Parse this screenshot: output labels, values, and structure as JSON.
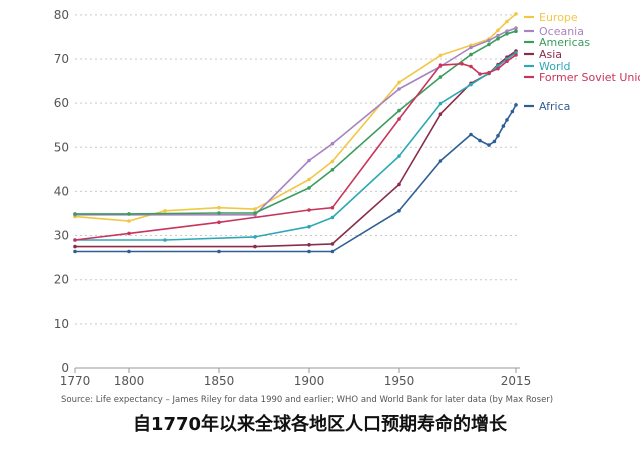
{
  "caption": "自1770年以来全球各地区人口预期寿命的增长",
  "chart_data": {
    "type": "line",
    "title": "",
    "xlabel": "",
    "ylabel": "",
    "xlim": [
      1770,
      2015
    ],
    "ylim": [
      0,
      82
    ],
    "x_ticks": [
      1770,
      1800,
      1850,
      1900,
      1950,
      2015
    ],
    "y_ticks": [
      0,
      10,
      20,
      30,
      40,
      50,
      60,
      70,
      80
    ],
    "grid": "horizontal dotted",
    "legend_placement": "right",
    "source": "Source: Life expectancy – James Riley for data 1990 and earlier; WHO and World Bank for later data (by Max Roser)",
    "series": [
      {
        "name": "Europe",
        "color": "#f2c744",
        "points": [
          [
            1770,
            34.3
          ],
          [
            1800,
            33.3
          ],
          [
            1820,
            35.6
          ],
          [
            1850,
            36.3
          ],
          [
            1870,
            36.0
          ],
          [
            1900,
            42.7
          ],
          [
            1913,
            46.8
          ],
          [
            1950,
            64.7
          ],
          [
            1973,
            70.8
          ],
          [
            1990,
            73.1
          ],
          [
            2000,
            74.5
          ],
          [
            2005,
            76.5
          ],
          [
            2010,
            78.5
          ],
          [
            2015,
            80.2
          ]
        ]
      },
      {
        "name": "Oceania",
        "color": "#a884bf",
        "points": [
          [
            1770,
            34.7
          ],
          [
            1870,
            34.7
          ],
          [
            1900,
            47.0
          ],
          [
            1913,
            50.8
          ],
          [
            1950,
            63.2
          ],
          [
            1973,
            68.3
          ],
          [
            1990,
            72.6
          ],
          [
            2000,
            74.2
          ],
          [
            2005,
            75.3
          ],
          [
            2010,
            76.3
          ],
          [
            2015,
            77.0
          ]
        ]
      },
      {
        "name": "Americas",
        "color": "#3b9c5e",
        "points": [
          [
            1770,
            34.9
          ],
          [
            1800,
            34.9
          ],
          [
            1850,
            35.1
          ],
          [
            1870,
            35.1
          ],
          [
            1900,
            40.8
          ],
          [
            1913,
            44.9
          ],
          [
            1950,
            58.3
          ],
          [
            1973,
            65.9
          ],
          [
            1990,
            71.0
          ],
          [
            2000,
            73.3
          ],
          [
            2005,
            74.6
          ],
          [
            2010,
            75.7
          ],
          [
            2015,
            76.3
          ]
        ]
      },
      {
        "name": "Asia",
        "color": "#8a2d4b",
        "points": [
          [
            1770,
            27.5
          ],
          [
            1870,
            27.5
          ],
          [
            1900,
            27.9
          ],
          [
            1913,
            28.1
          ],
          [
            1950,
            41.6
          ],
          [
            1973,
            57.5
          ],
          [
            1990,
            64.5
          ],
          [
            2000,
            66.7
          ],
          [
            2005,
            68.7
          ],
          [
            2010,
            70.4
          ],
          [
            2015,
            71.8
          ]
        ]
      },
      {
        "name": "World",
        "color": "#2ea8b5",
        "points": [
          [
            1770,
            29.0
          ],
          [
            1820,
            29.0
          ],
          [
            1870,
            29.7
          ],
          [
            1900,
            32.0
          ],
          [
            1913,
            34.1
          ],
          [
            1950,
            48.0
          ],
          [
            1973,
            59.9
          ],
          [
            1990,
            64.2
          ],
          [
            2000,
            66.8
          ],
          [
            2005,
            68.4
          ],
          [
            2010,
            70.0
          ],
          [
            2015,
            71.4
          ]
        ]
      },
      {
        "name": "Former Soviet Union",
        "color": "#c7355b",
        "points": [
          [
            1770,
            29.0
          ],
          [
            1800,
            30.5
          ],
          [
            1850,
            33.0
          ],
          [
            1900,
            35.8
          ],
          [
            1913,
            36.3
          ],
          [
            1950,
            56.4
          ],
          [
            1973,
            68.6
          ],
          [
            1985,
            68.9
          ],
          [
            1990,
            68.3
          ],
          [
            1995,
            66.6
          ],
          [
            2000,
            66.9
          ],
          [
            2005,
            67.8
          ],
          [
            2010,
            69.5
          ],
          [
            2015,
            70.9
          ]
        ]
      },
      {
        "name": "Africa",
        "color": "#2f5e96",
        "points": [
          [
            1770,
            26.4
          ],
          [
            1800,
            26.4
          ],
          [
            1850,
            26.4
          ],
          [
            1900,
            26.4
          ],
          [
            1913,
            26.4
          ],
          [
            1950,
            35.6
          ],
          [
            1973,
            46.9
          ],
          [
            1990,
            52.9
          ],
          [
            1995,
            51.5
          ],
          [
            2000,
            50.5
          ],
          [
            2003,
            51.3
          ],
          [
            2005,
            52.6
          ],
          [
            2008,
            54.8
          ],
          [
            2010,
            56.2
          ],
          [
            2013,
            58.1
          ],
          [
            2015,
            59.6
          ]
        ]
      }
    ]
  }
}
